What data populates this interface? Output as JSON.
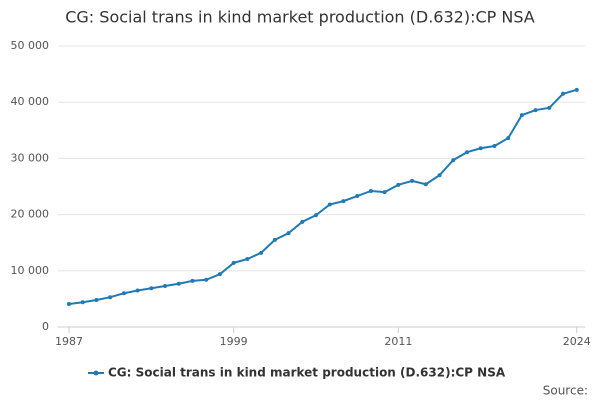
{
  "chart_data": {
    "type": "line",
    "title": "CG: Social trans in kind market production (D.632):CP NSA",
    "x": [
      1987,
      1988,
      1989,
      1990,
      1991,
      1992,
      1993,
      1994,
      1995,
      1996,
      1997,
      1998,
      1999,
      2000,
      2001,
      2002,
      2003,
      2004,
      2005,
      2006,
      2007,
      2008,
      2009,
      2010,
      2011,
      2012,
      2013,
      2014,
      2015,
      2016,
      2017,
      2018,
      2019,
      2020,
      2021,
      2022,
      2023,
      2024
    ],
    "series": [
      {
        "name": "CG: Social trans in kind market production (D.632):CP NSA",
        "color": "#1f7bb6",
        "values": [
          4100,
          4400,
          4800,
          5300,
          6000,
          6500,
          6900,
          7300,
          7700,
          8200,
          8400,
          9400,
          11400,
          12100,
          13200,
          15500,
          16700,
          18700,
          19900,
          21800,
          22400,
          23300,
          24200,
          24000,
          25300,
          26000,
          25400,
          27000,
          29700,
          31100,
          31800,
          32200,
          33600,
          37700,
          38600,
          39000,
          41500,
          42200
        ]
      }
    ],
    "xlim": [
      1986.2,
      2024.6
    ],
    "xticks": [
      1987,
      1999,
      2011,
      2024
    ],
    "ylim": [
      0,
      50000
    ],
    "yticks": [
      0,
      {
        "value": 10000,
        "label": "10 000"
      },
      {
        "value": 20000,
        "label": "20 000"
      },
      {
        "value": 30000,
        "label": "30 000"
      },
      {
        "value": 40000,
        "label": "40 000"
      },
      {
        "value": 50000,
        "label": "50 000"
      }
    ],
    "grid": true,
    "legend": "bottom",
    "source": "Source:"
  }
}
